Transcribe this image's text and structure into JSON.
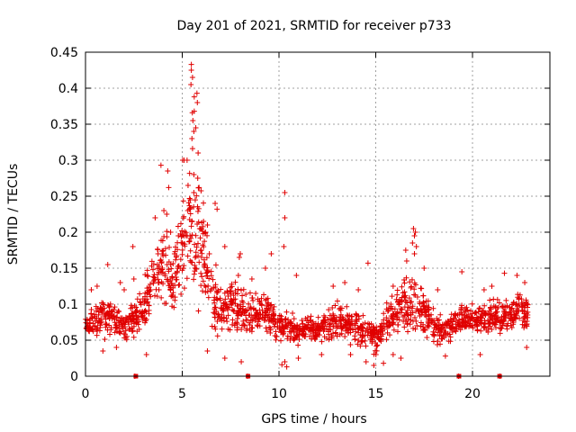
{
  "chart_data": {
    "type": "scatter",
    "title": "Day 201 of 2021, SRMTID for receiver p733",
    "xlabel": "GPS time / hours",
    "ylabel": "SRMTID / TECUs",
    "xlim": [
      0,
      24
    ],
    "ylim": [
      0,
      0.45
    ],
    "xticks": [
      0,
      5,
      10,
      15,
      20
    ],
    "xtick_labels": [
      "0",
      "5",
      "10",
      "15",
      "20"
    ],
    "yticks": [
      0,
      0.05,
      0.1,
      0.15,
      0.2,
      0.25,
      0.3,
      0.35,
      0.4,
      0.45
    ],
    "ytick_labels": [
      "0",
      "0.05",
      "0.1",
      "0.15",
      "0.2",
      "0.25",
      "0.3",
      "0.35",
      "0.4",
      "0.45"
    ],
    "grid": true,
    "marker": "+",
    "color": "#e00000",
    "zero_markers_x": [
      2.6,
      8.4,
      19.3,
      21.4
    ],
    "profile": [
      [
        0.0,
        0.07,
        0.015
      ],
      [
        0.5,
        0.075,
        0.02
      ],
      [
        1.0,
        0.085,
        0.025
      ],
      [
        1.5,
        0.08,
        0.02
      ],
      [
        2.0,
        0.07,
        0.02
      ],
      [
        2.5,
        0.075,
        0.02
      ],
      [
        3.0,
        0.09,
        0.03
      ],
      [
        3.5,
        0.13,
        0.04
      ],
      [
        4.0,
        0.16,
        0.05
      ],
      [
        4.5,
        0.13,
        0.04
      ],
      [
        5.0,
        0.17,
        0.06
      ],
      [
        5.5,
        0.22,
        0.09
      ],
      [
        6.0,
        0.18,
        0.07
      ],
      [
        6.5,
        0.12,
        0.04
      ],
      [
        7.0,
        0.09,
        0.03
      ],
      [
        7.5,
        0.1,
        0.03
      ],
      [
        8.0,
        0.09,
        0.03
      ],
      [
        8.5,
        0.08,
        0.025
      ],
      [
        9.0,
        0.09,
        0.025
      ],
      [
        9.5,
        0.085,
        0.025
      ],
      [
        10.0,
        0.07,
        0.02
      ],
      [
        10.5,
        0.065,
        0.02
      ],
      [
        11.0,
        0.06,
        0.015
      ],
      [
        11.5,
        0.065,
        0.015
      ],
      [
        12.0,
        0.065,
        0.015
      ],
      [
        12.5,
        0.07,
        0.02
      ],
      [
        13.0,
        0.075,
        0.02
      ],
      [
        13.5,
        0.07,
        0.02
      ],
      [
        14.0,
        0.065,
        0.02
      ],
      [
        14.5,
        0.06,
        0.02
      ],
      [
        15.0,
        0.055,
        0.02
      ],
      [
        15.5,
        0.07,
        0.02
      ],
      [
        16.0,
        0.09,
        0.025
      ],
      [
        16.5,
        0.1,
        0.03
      ],
      [
        17.0,
        0.1,
        0.035
      ],
      [
        17.5,
        0.085,
        0.025
      ],
      [
        18.0,
        0.07,
        0.02
      ],
      [
        18.5,
        0.06,
        0.02
      ],
      [
        19.0,
        0.07,
        0.02
      ],
      [
        19.5,
        0.08,
        0.02
      ],
      [
        20.0,
        0.08,
        0.02
      ],
      [
        20.5,
        0.075,
        0.02
      ],
      [
        21.0,
        0.085,
        0.02
      ],
      [
        21.5,
        0.08,
        0.02
      ],
      [
        22.0,
        0.085,
        0.02
      ],
      [
        22.5,
        0.09,
        0.025
      ],
      [
        22.9,
        0.085,
        0.02
      ]
    ],
    "peaks": [
      [
        5.47,
        0.433
      ],
      [
        5.47,
        0.425
      ],
      [
        5.53,
        0.415
      ],
      [
        5.45,
        0.405
      ],
      [
        5.76,
        0.393
      ],
      [
        5.62,
        0.388
      ],
      [
        5.78,
        0.38
      ],
      [
        5.52,
        0.366
      ],
      [
        5.62,
        0.368
      ],
      [
        5.55,
        0.355
      ],
      [
        5.7,
        0.345
      ],
      [
        5.6,
        0.34
      ],
      [
        5.5,
        0.33
      ],
      [
        5.82,
        0.31
      ],
      [
        5.02,
        0.3
      ],
      [
        5.25,
        0.3
      ],
      [
        5.1,
        0.3
      ],
      [
        3.9,
        0.293
      ],
      [
        4.25,
        0.285
      ],
      [
        5.6,
        0.28
      ],
      [
        5.8,
        0.275
      ],
      [
        4.3,
        0.262
      ],
      [
        5.3,
        0.265
      ],
      [
        5.87,
        0.262
      ],
      [
        5.6,
        0.255
      ],
      [
        10.3,
        0.255
      ],
      [
        6.7,
        0.24
      ],
      [
        4.05,
        0.23
      ],
      [
        4.2,
        0.225
      ],
      [
        6.8,
        0.232
      ],
      [
        10.3,
        0.22
      ],
      [
        3.6,
        0.22
      ],
      [
        6.1,
        0.215
      ],
      [
        5.9,
        0.205
      ],
      [
        6.2,
        0.2
      ],
      [
        6.3,
        0.21
      ],
      [
        4.4,
        0.2
      ],
      [
        16.95,
        0.205
      ],
      [
        17.0,
        0.195
      ],
      [
        17.05,
        0.2
      ],
      [
        16.9,
        0.185
      ],
      [
        17.1,
        0.18
      ],
      [
        16.55,
        0.175
      ],
      [
        17.0,
        0.17
      ],
      [
        2.45,
        0.18
      ],
      [
        10.25,
        0.18
      ],
      [
        7.2,
        0.18
      ],
      [
        8.0,
        0.17
      ],
      [
        7.95,
        0.165
      ],
      [
        9.6,
        0.17
      ],
      [
        6.4,
        0.17
      ],
      [
        6.0,
        0.165
      ],
      [
        5.0,
        0.185
      ],
      [
        4.8,
        0.195
      ],
      [
        5.4,
        0.195
      ],
      [
        4.6,
        0.17
      ],
      [
        3.75,
        0.17
      ],
      [
        1.15,
        0.155
      ],
      [
        14.6,
        0.157
      ],
      [
        16.6,
        0.16
      ],
      [
        17.5,
        0.15
      ],
      [
        19.45,
        0.145
      ],
      [
        21.65,
        0.143
      ],
      [
        22.3,
        0.14
      ],
      [
        9.3,
        0.15
      ],
      [
        10.9,
        0.14
      ],
      [
        7.9,
        0.14
      ],
      [
        8.6,
        0.135
      ],
      [
        2.5,
        0.135
      ],
      [
        3.2,
        0.14
      ],
      [
        0.6,
        0.125
      ],
      [
        0.3,
        0.12
      ],
      [
        1.8,
        0.13
      ],
      [
        2.0,
        0.12
      ],
      [
        12.8,
        0.125
      ],
      [
        13.4,
        0.13
      ],
      [
        14.1,
        0.12
      ],
      [
        15.9,
        0.125
      ],
      [
        18.2,
        0.12
      ],
      [
        20.6,
        0.12
      ],
      [
        21.0,
        0.125
      ],
      [
        22.7,
        0.13
      ]
    ],
    "lows": [
      [
        2.55,
        0.0
      ],
      [
        8.38,
        0.0
      ],
      [
        19.28,
        0.0
      ],
      [
        21.42,
        0.0
      ],
      [
        10.15,
        0.016
      ],
      [
        10.4,
        0.013
      ],
      [
        10.3,
        0.02
      ],
      [
        8.05,
        0.02
      ],
      [
        7.2,
        0.025
      ],
      [
        14.5,
        0.02
      ],
      [
        14.9,
        0.015
      ],
      [
        15.4,
        0.018
      ],
      [
        3.15,
        0.03
      ],
      [
        11.0,
        0.025
      ],
      [
        12.2,
        0.03
      ],
      [
        13.7,
        0.03
      ],
      [
        15.9,
        0.03
      ],
      [
        16.3,
        0.025
      ],
      [
        18.6,
        0.028
      ],
      [
        20.4,
        0.03
      ],
      [
        22.8,
        0.04
      ],
      [
        0.9,
        0.035
      ],
      [
        1.6,
        0.04
      ],
      [
        6.3,
        0.035
      ]
    ],
    "seed": 201,
    "points_per_segment": 38
  }
}
